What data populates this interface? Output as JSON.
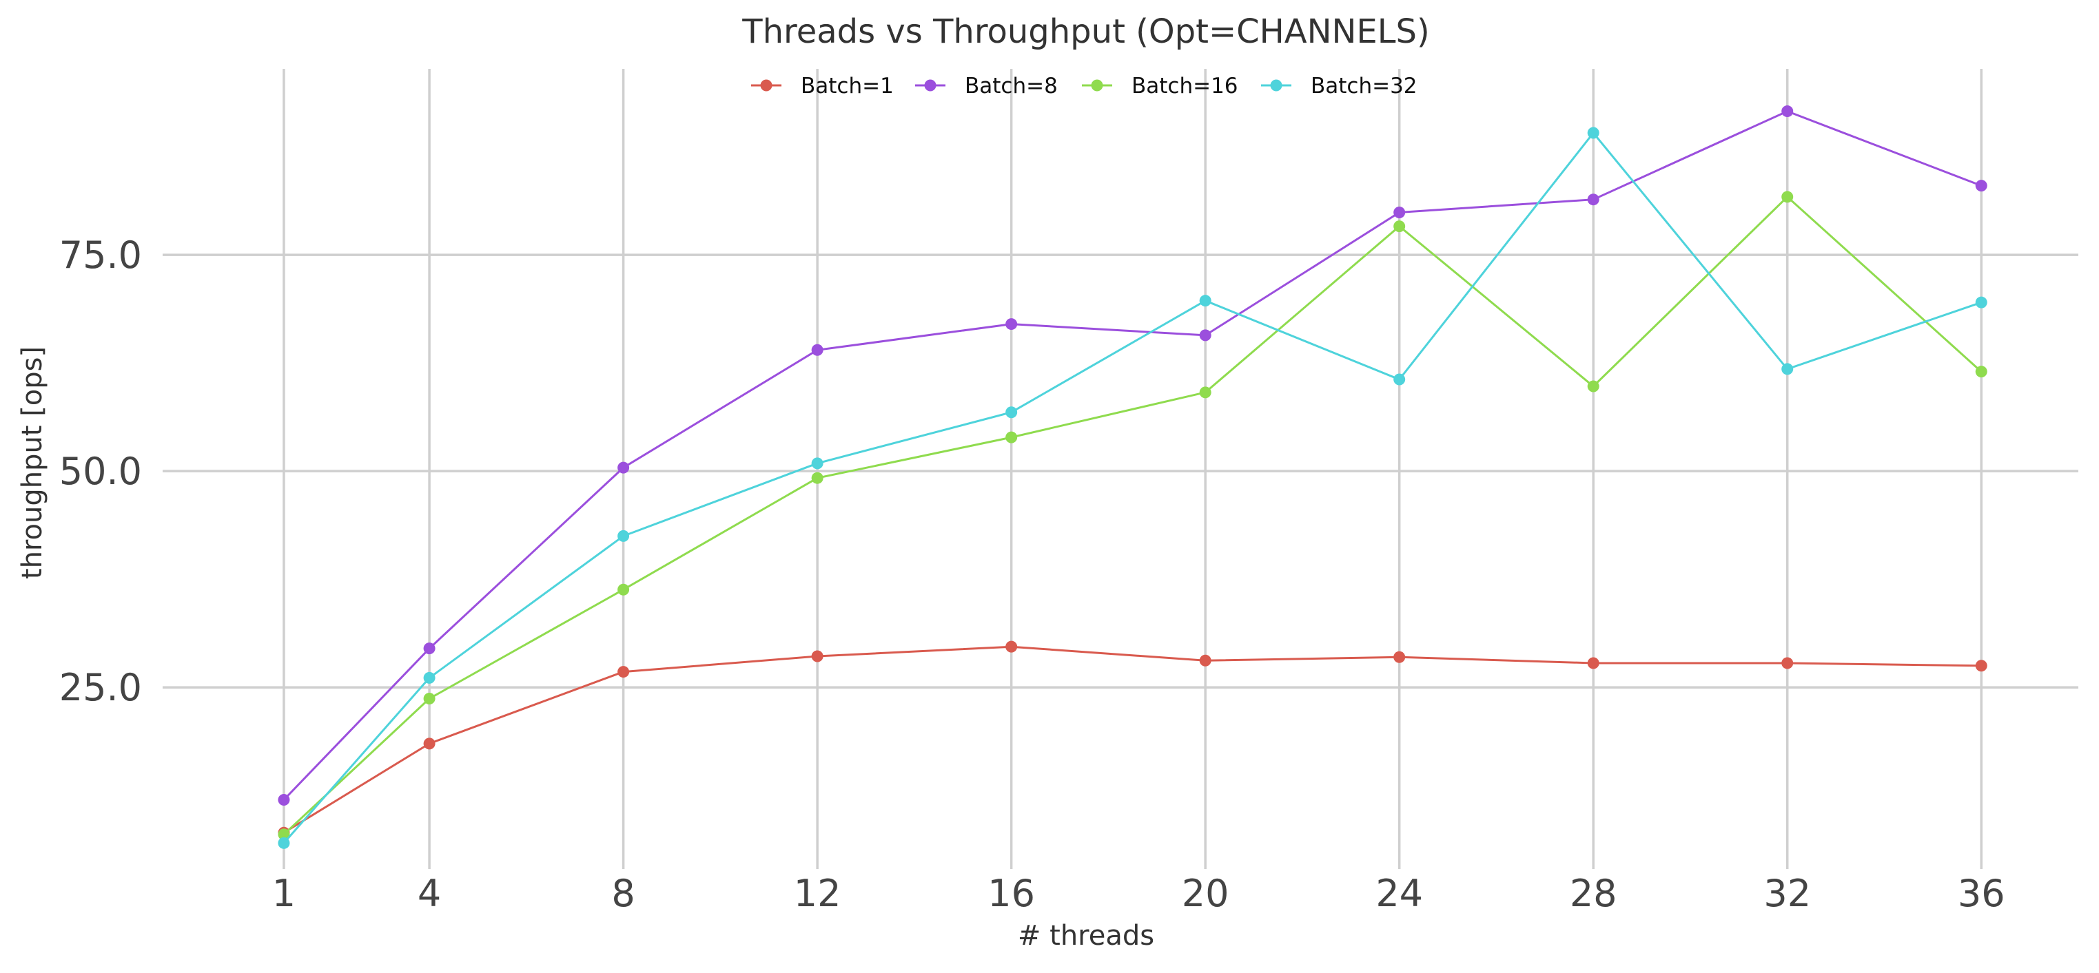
{
  "chart_data": {
    "type": "line",
    "title": "Threads vs Throughput (Opt=CHANNELS)",
    "xlabel": "# threads",
    "ylabel": "throughput [ops]",
    "x": [
      1,
      4,
      8,
      12,
      16,
      20,
      24,
      28,
      32,
      36
    ],
    "x_ticks": [
      "1",
      "4",
      "8",
      "12",
      "16",
      "20",
      "24",
      "28",
      "32",
      "36"
    ],
    "y_ticks": [
      25.0,
      50.0,
      75.0
    ],
    "y_tick_labels": [
      "25.0",
      "50.0",
      "75.0"
    ],
    "xlim": [
      -1.5,
      38.0
    ],
    "ylim": [
      4.0,
      96.5
    ],
    "grid": true,
    "legend_position": "top-center",
    "series": [
      {
        "name": "Batch=1",
        "color": "#d95a4e",
        "values": [
          8.2,
          18.5,
          26.8,
          28.6,
          29.7,
          28.1,
          28.5,
          27.8,
          27.8,
          27.5
        ]
      },
      {
        "name": "Batch=8",
        "color": "#9b4fdd",
        "values": [
          12.0,
          29.5,
          50.4,
          64.0,
          67.0,
          65.7,
          79.9,
          81.4,
          91.6,
          83.0
        ]
      },
      {
        "name": "Batch=16",
        "color": "#8fdb4e",
        "values": [
          8.0,
          23.7,
          36.3,
          49.2,
          53.9,
          59.1,
          78.3,
          59.8,
          81.7,
          61.5
        ]
      },
      {
        "name": "Batch=32",
        "color": "#4ed3db",
        "values": [
          7.0,
          26.1,
          42.5,
          50.9,
          56.8,
          69.7,
          60.6,
          89.1,
          61.8,
          69.5
        ]
      }
    ]
  }
}
